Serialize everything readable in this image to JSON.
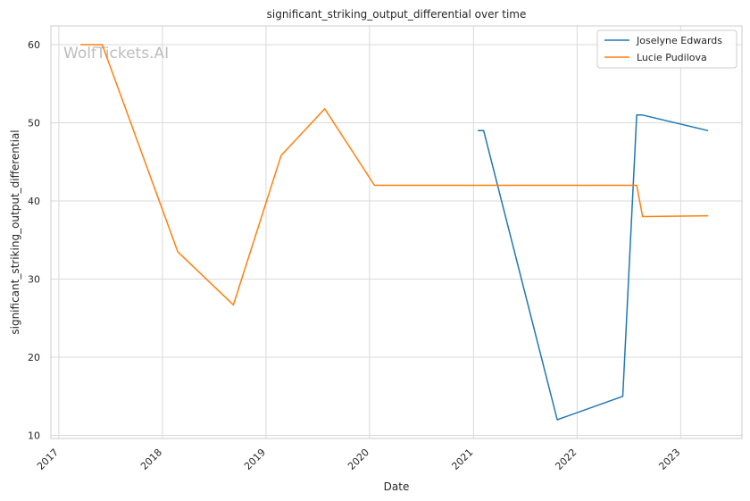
{
  "chart_data": {
    "type": "line",
    "title": "significant_striking_output_differential over time",
    "xlabel": "Date",
    "ylabel": "significant_striking_output_differential",
    "watermark": "WolfTickets.AI",
    "x_ticks": [
      "2017",
      "2018",
      "2019",
      "2020",
      "2021",
      "2022",
      "2023"
    ],
    "y_ticks": [
      10,
      20,
      30,
      40,
      50,
      60
    ],
    "ylim": [
      9.6,
      62.4
    ],
    "xlim": [
      "2016-12-04",
      "2023-08-05"
    ],
    "grid": true,
    "legend_position": "top-right",
    "series": [
      {
        "name": "Joselyne Edwards",
        "color": "#1f77b4",
        "points": [
          {
            "x": "2021-01-16",
            "y": 49
          },
          {
            "x": "2021-02-06",
            "y": 49
          },
          {
            "x": "2021-10-23",
            "y": 12
          },
          {
            "x": "2022-06-11",
            "y": 15
          },
          {
            "x": "2022-07-30",
            "y": 51
          },
          {
            "x": "2022-08-20",
            "y": 51
          },
          {
            "x": "2023-04-08",
            "y": 49
          }
        ]
      },
      {
        "name": "Lucie Pudilova",
        "color": "#ff7f0e",
        "points": [
          {
            "x": "2017-03-18",
            "y": 60
          },
          {
            "x": "2017-06-03",
            "y": 60
          },
          {
            "x": "2018-02-24",
            "y": 33.5
          },
          {
            "x": "2018-09-08",
            "y": 26.7
          },
          {
            "x": "2019-02-23",
            "y": 45.8
          },
          {
            "x": "2019-07-27",
            "y": 51.8
          },
          {
            "x": "2020-01-18",
            "y": 42
          },
          {
            "x": "2022-07-30",
            "y": 42
          },
          {
            "x": "2022-08-20",
            "y": 38
          },
          {
            "x": "2023-04-08",
            "y": 38.1
          }
        ]
      }
    ]
  }
}
